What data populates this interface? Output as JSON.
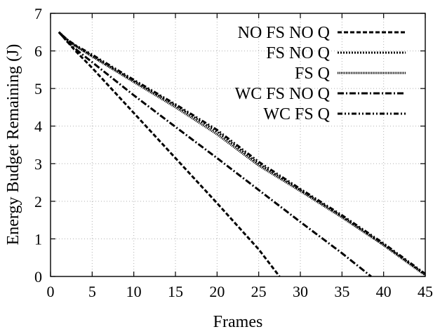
{
  "chart_data": {
    "type": "line",
    "title": "",
    "xlabel": "Frames",
    "ylabel": "Energy Budget Remaining (J)",
    "xlim": [
      0,
      45
    ],
    "ylim": [
      0,
      7
    ],
    "xticks": [
      0,
      5,
      10,
      15,
      20,
      25,
      30,
      35,
      40,
      45
    ],
    "yticks": [
      0,
      1,
      2,
      3,
      4,
      5,
      6,
      7
    ],
    "grid": true,
    "legend_position": "top-right",
    "series": [
      {
        "name": "NO FS NO Q",
        "line_style": "dashed",
        "x": [
          1,
          2,
          3,
          5,
          10,
          15,
          20,
          25,
          27.5
        ],
        "y": [
          6.5,
          6.25,
          6.0,
          5.55,
          4.35,
          3.15,
          1.95,
          0.72,
          0.0
        ]
      },
      {
        "name": "FS NO Q",
        "line_style": "dotted",
        "x": [
          1,
          2,
          3,
          5,
          10,
          15,
          20,
          25,
          30,
          35,
          40,
          45
        ],
        "y": [
          6.5,
          6.3,
          6.14,
          5.87,
          5.2,
          4.55,
          3.85,
          3.0,
          2.3,
          1.6,
          0.85,
          0.05
        ]
      },
      {
        "name": "FS Q",
        "line_style": "fine-dotted",
        "x": [
          1,
          2,
          3,
          5,
          10,
          15,
          20,
          25,
          30,
          35,
          40,
          45
        ],
        "y": [
          6.5,
          6.3,
          6.13,
          5.85,
          5.17,
          4.5,
          3.78,
          2.95,
          2.27,
          1.57,
          0.83,
          0.03
        ]
      },
      {
        "name": "WC FS NO Q",
        "line_style": "dash-dot",
        "x": [
          1,
          2,
          3,
          5,
          10,
          15,
          20,
          25,
          30,
          35,
          38.5
        ],
        "y": [
          6.5,
          6.25,
          6.05,
          5.7,
          4.82,
          3.98,
          3.15,
          2.3,
          1.45,
          0.62,
          0.0
        ]
      },
      {
        "name": "WC FS Q",
        "line_style": "dash-dot-dot",
        "x": [
          1,
          2,
          3,
          5,
          10,
          15,
          20,
          25,
          30,
          35,
          40,
          45
        ],
        "y": [
          6.5,
          6.3,
          6.15,
          5.9,
          5.23,
          4.58,
          3.9,
          3.05,
          2.33,
          1.63,
          0.88,
          0.07
        ]
      }
    ]
  }
}
